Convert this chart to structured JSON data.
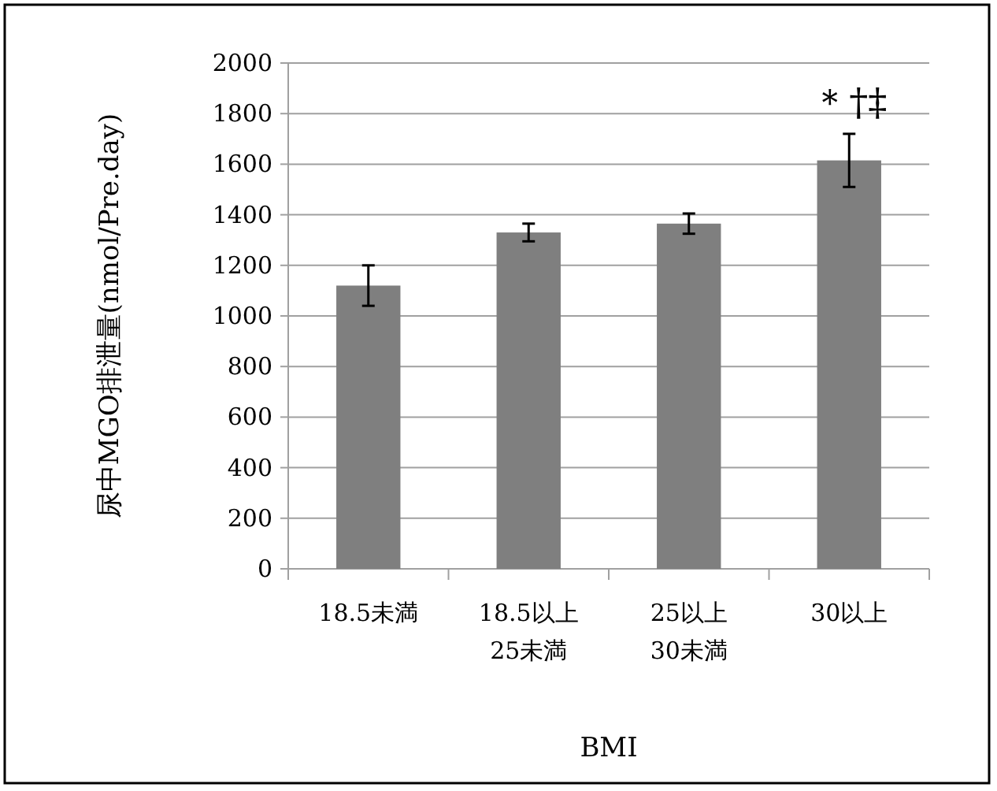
{
  "chart_data": {
    "type": "bar",
    "categories": [
      "18.5未満",
      "18.5以上\n25未満",
      "25以上\n30未満",
      "30以上"
    ],
    "values": [
      1120,
      1330,
      1365,
      1615
    ],
    "errors": [
      80,
      35,
      40,
      105
    ],
    "color": "#7f7f7f",
    "ylabel": "尿中MGO排泄量(nmol/Pre.day)",
    "xlabel": "BMI",
    "ylim": [
      0,
      2000
    ],
    "yticks": [
      0,
      200,
      400,
      600,
      800,
      1000,
      1200,
      1400,
      1600,
      1800,
      2000
    ],
    "grid": "y",
    "annotations": [
      "＊†‡"
    ]
  }
}
